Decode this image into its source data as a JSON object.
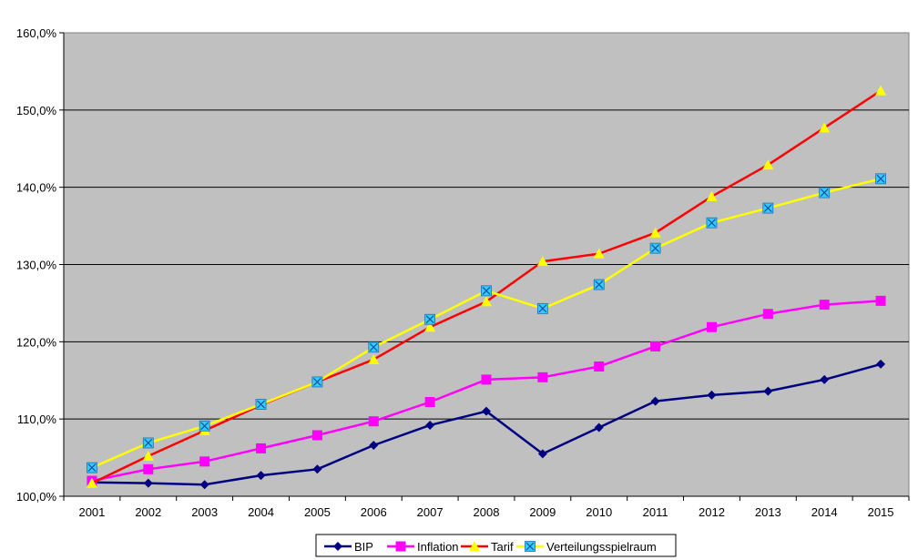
{
  "chart_data": {
    "type": "line",
    "title": "",
    "xlabel": "",
    "ylabel": "",
    "categories": [
      "2001",
      "2002",
      "2003",
      "2004",
      "2005",
      "2006",
      "2007",
      "2008",
      "2009",
      "2010",
      "2011",
      "2012",
      "2013",
      "2014",
      "2015"
    ],
    "ylim": [
      100,
      160
    ],
    "yticks": [
      "100,0%",
      "110,0%",
      "120,0%",
      "130,0%",
      "140,0%",
      "150,0%",
      "160,0%"
    ],
    "grid": "horizontal",
    "plot_background": "#c0c0c0",
    "legend_position": "bottom",
    "series": [
      {
        "name": "BIP",
        "color": "#000080",
        "marker": "diamond",
        "marker_color": "#000080",
        "values": [
          101.8,
          101.7,
          101.5,
          102.7,
          103.5,
          106.6,
          109.2,
          111.0,
          105.5,
          108.9,
          112.3,
          113.1,
          113.6,
          115.1,
          117.1
        ]
      },
      {
        "name": "Inflation",
        "color": "#ff00ff",
        "marker": "square",
        "marker_color": "#ff00ff",
        "values": [
          102.0,
          103.5,
          104.5,
          106.2,
          107.9,
          109.7,
          112.2,
          115.1,
          115.4,
          116.8,
          119.4,
          121.9,
          123.6,
          124.8,
          125.3
        ]
      },
      {
        "name": "Tarif",
        "color": "#ff0000",
        "marker": "triangle",
        "marker_color": "#ffff00",
        "values": [
          101.7,
          105.2,
          108.5,
          111.8,
          114.8,
          117.7,
          121.9,
          125.2,
          130.4,
          131.4,
          134.1,
          138.8,
          142.9,
          147.7,
          152.5
        ]
      },
      {
        "name": "Verteilungsspielraum",
        "color": "#ffff00",
        "marker": "x-square",
        "marker_color": "#33ccff",
        "values": [
          103.7,
          106.9,
          109.1,
          111.9,
          114.8,
          119.3,
          122.9,
          126.6,
          124.3,
          127.4,
          132.1,
          135.4,
          137.3,
          139.3,
          141.1
        ]
      }
    ]
  }
}
